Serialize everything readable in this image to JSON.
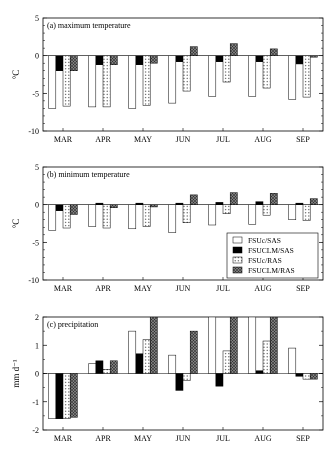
{
  "colors": {
    "FSUc/SAS": "#ffffff",
    "FSUCLM/SAS": "#000000",
    "FSUc/RAS": "#f2f2f2",
    "FSUCLM/RAS": "#8c8c8c"
  },
  "legend": {
    "position": "bottom-right of panel (b)"
  },
  "chart_data": [
    {
      "type": "bar",
      "title": "(a) maximum temperature",
      "ylabel": "°C",
      "xlabel": "",
      "ylim": [
        -10,
        5
      ],
      "yticks": [
        -10,
        -5,
        0,
        5
      ],
      "categories": [
        "MAR",
        "APR",
        "MAY",
        "JUN",
        "JUL",
        "AUG",
        "SEP"
      ],
      "series": [
        {
          "name": "FSUc/SAS",
          "values": [
            -7.0,
            -6.8,
            -7.0,
            -6.3,
            -5.4,
            -5.4,
            -5.8
          ]
        },
        {
          "name": "FSUCLM/SAS",
          "values": [
            -2.0,
            -1.2,
            -1.2,
            -0.8,
            -0.8,
            -0.8,
            -1.1
          ]
        },
        {
          "name": "FSUc/RAS",
          "values": [
            -6.7,
            -6.8,
            -6.6,
            -4.7,
            -3.5,
            -4.3,
            -5.5
          ]
        },
        {
          "name": "FSUCLM/RAS",
          "values": [
            -2.0,
            -1.2,
            -1.0,
            1.2,
            1.6,
            0.9,
            -0.2
          ]
        }
      ]
    },
    {
      "type": "bar",
      "title": "(b) minimum temperature",
      "ylabel": "°C",
      "xlabel": "",
      "ylim": [
        -10,
        5
      ],
      "yticks": [
        -10,
        -5,
        0,
        5
      ],
      "categories": [
        "MAR",
        "APR",
        "MAY",
        "JUN",
        "JUL",
        "AUG",
        "SEP"
      ],
      "series": [
        {
          "name": "FSUc/SAS",
          "values": [
            -3.4,
            -2.9,
            -3.2,
            -3.7,
            -2.7,
            -2.6,
            -2.0
          ]
        },
        {
          "name": "FSUCLM/SAS",
          "values": [
            -0.8,
            0.2,
            0.2,
            0.2,
            0.3,
            0.4,
            0.2
          ]
        },
        {
          "name": "FSUc/RAS",
          "values": [
            -3.1,
            -3.1,
            -2.9,
            -2.4,
            -1.2,
            -1.4,
            -2.1
          ]
        },
        {
          "name": "FSUCLM/RAS",
          "values": [
            -1.3,
            -0.4,
            -0.3,
            1.3,
            1.6,
            1.5,
            0.8
          ]
        }
      ]
    },
    {
      "type": "bar",
      "title": "(c) precipitation",
      "ylabel": "mm d⁻¹",
      "xlabel": "",
      "ylim": [
        -2,
        2
      ],
      "yticks": [
        -2,
        -1,
        0,
        1,
        2
      ],
      "categories": [
        "MAR",
        "APR",
        "MAY",
        "JUN",
        "JUL",
        "AUG",
        "SEP"
      ],
      "series": [
        {
          "name": "FSUc/SAS",
          "values": [
            -1.6,
            0.35,
            1.5,
            0.65,
            2.0,
            2.0,
            0.9
          ]
        },
        {
          "name": "FSUCLM/SAS",
          "values": [
            -1.6,
            0.45,
            0.7,
            -0.6,
            -0.45,
            0.1,
            -0.1
          ]
        },
        {
          "name": "FSUc/RAS",
          "values": [
            -1.6,
            0.15,
            1.2,
            -0.25,
            0.8,
            1.15,
            -0.2
          ]
        },
        {
          "name": "FSUCLM/RAS",
          "values": [
            -1.55,
            0.45,
            2.0,
            1.5,
            2.0,
            2.0,
            -0.2
          ]
        }
      ]
    }
  ]
}
